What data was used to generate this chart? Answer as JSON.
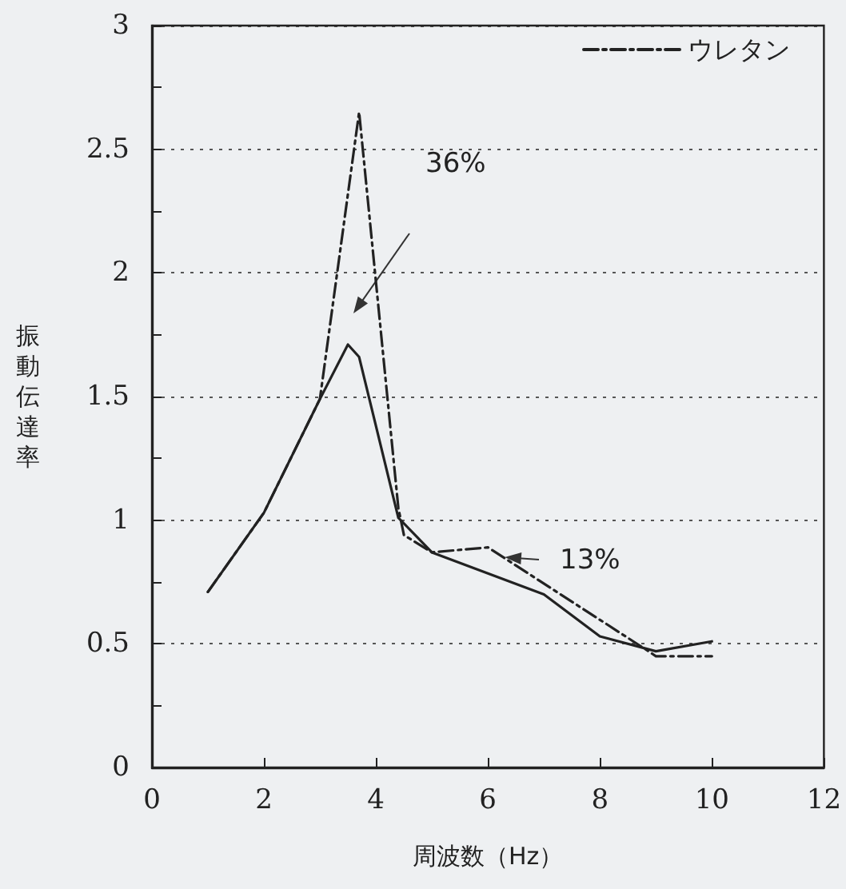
{
  "chart_data": {
    "type": "line",
    "xlabel": "周波数（Hz）",
    "ylabel": "振動伝達率",
    "xlim": [
      0,
      12
    ],
    "xticks": [
      0,
      2,
      4,
      6,
      8,
      10,
      12
    ],
    "ylim": [
      0,
      3
    ],
    "yticks": [
      0,
      0.5,
      1,
      1.5,
      2,
      2.5,
      3
    ],
    "grid": "y",
    "legend": "top right",
    "marker": "none",
    "series": [
      {
        "color": "#222222",
        "line_style": "solid",
        "x": [
          1,
          2,
          3,
          3.5,
          3.7,
          4.4,
          5,
          7,
          8,
          9,
          10
        ],
        "values": [
          0.71,
          1.03,
          1.49,
          1.71,
          1.66,
          1.01,
          0.87,
          0.7,
          0.53,
          0.47,
          0.51
        ]
      },
      {
        "name": "ウレタン",
        "color": "#222222",
        "line_style": "dashed",
        "x": [
          1,
          2,
          3,
          3.7,
          4.4,
          4.5,
          5,
          6,
          8.8,
          9,
          10
        ],
        "values": [
          0.71,
          1.03,
          1.49,
          2.65,
          1.05,
          0.94,
          0.87,
          0.89,
          0.48,
          0.45,
          0.45
        ]
      }
    ],
    "annotations": [
      "36%",
      {
        "text": "13%",
        "x": 6.3,
        "y": 0.85
      }
    ]
  }
}
